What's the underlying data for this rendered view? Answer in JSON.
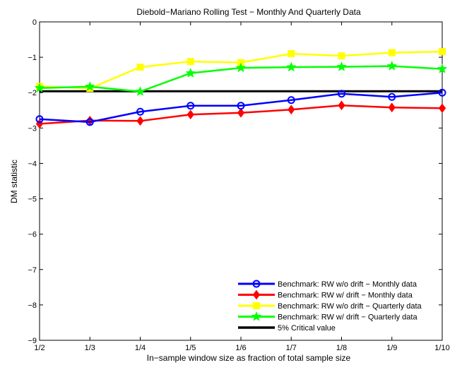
{
  "chart_data": {
    "type": "line",
    "title": "Diebold−Mariano Rolling Test − Monthly And Quarterly Data",
    "xlabel": "In−sample window size as fraction of total sample size",
    "ylabel": "DM statistic",
    "categories": [
      "1/2",
      "1/3",
      "1/4",
      "1/5",
      "1/6",
      "1/7",
      "1/8",
      "1/9",
      "1/10"
    ],
    "ylim": [
      -9,
      0
    ],
    "yticks": [
      0,
      -1,
      -2,
      -3,
      -4,
      -5,
      -6,
      -7,
      -8,
      -9
    ],
    "ytick_labels": [
      "0",
      "−1",
      "−2",
      "−3",
      "−4",
      "−5",
      "−6",
      "−7",
      "−8",
      "−9"
    ],
    "grid": false,
    "legend_position": "bottom-right",
    "series": [
      {
        "name": "Benchmark: RW w/o drift − Monthly data",
        "color": "#0000ff",
        "marker": "circle",
        "values": [
          -2.75,
          -2.83,
          -2.54,
          -2.37,
          -2.37,
          -2.21,
          -2.03,
          -2.12,
          -2.0
        ]
      },
      {
        "name": "Benchmark: RW w/ drift − Monthly data",
        "color": "#ff0000",
        "marker": "diamond",
        "values": [
          -2.88,
          -2.79,
          -2.8,
          -2.62,
          -2.57,
          -2.48,
          -2.36,
          -2.42,
          -2.44
        ]
      },
      {
        "name": "Benchmark: RW w/o drift − Quarterly data",
        "color": "#ffff00",
        "marker": "square",
        "values": [
          -1.82,
          -1.88,
          -1.28,
          -1.12,
          -1.15,
          -0.9,
          -0.96,
          -0.87,
          -0.84
        ]
      },
      {
        "name": "Benchmark: RW w/ drift − Quarterly data",
        "color": "#00ff00",
        "marker": "star",
        "values": [
          -1.87,
          -1.83,
          -1.97,
          -1.45,
          -1.3,
          -1.28,
          -1.27,
          -1.25,
          -1.33
        ]
      },
      {
        "name": "5% Critical value",
        "color": "#000000",
        "marker": "none",
        "values": [
          -1.96,
          -1.96,
          -1.96,
          -1.96,
          -1.96,
          -1.96,
          -1.96,
          -1.96,
          -1.96
        ]
      }
    ]
  }
}
